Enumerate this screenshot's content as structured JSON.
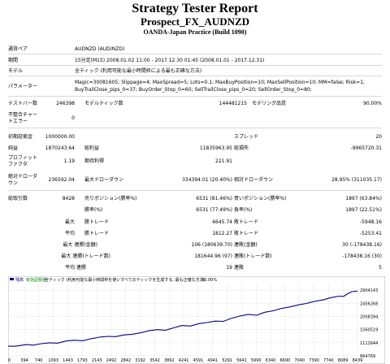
{
  "header": {
    "title": "Strategy Tester Report",
    "subtitle": "Prospect_FX_AUDNZD",
    "build": "OANDA-Japan Practice (Build 1090)"
  },
  "settings": {
    "symbol_label": "通貨ペア",
    "symbol_value": "AUDNZD (AUD/NZD)",
    "period_label": "期間",
    "period_value": "15分足(M15) 2008.01.02 11:00 - 2017.12.30 01:45 (2008.01.01 - 2017.12.31)",
    "model_label": "モデル",
    "model_value": "全ティック (利用可能な最小時間枠による最も正確な方法)",
    "params_label": "パラメーター",
    "params_line1": "Magic=30081605; Slippage=4; MaxSpread=5; Lots=0.1; MaxBuyPosition=10; MaxSellPosition=10; MM=false; Risk=1;",
    "params_line2": "BuyTrailClose_pips_0=37; BuyOrder_Stop_0=60; SellTrailClose_pips_0=20; SellOrder_Stop_0=80;"
  },
  "test_info": {
    "bars_label": "テストバー数",
    "bars_value": "246398",
    "ticks_label": "モデルティック数",
    "ticks_value": "144481215",
    "quality_label": "モデリング品質",
    "quality_value": "90.00%",
    "mismatch_label_1": "不整合チャー",
    "mismatch_label_2": "トエラー",
    "mismatch_value": "0"
  },
  "results": {
    "deposit_label": "初期証拠金",
    "deposit_value": "1000000.00",
    "spread_label": "スプレッド",
    "spread_value": "20",
    "net_label": "純益",
    "net_value": "1870243.64",
    "gross_profit_label": "総利益",
    "gross_profit_value": "11835963.95",
    "gross_loss_label": "総損失",
    "gross_loss_value": "-9965720.31",
    "pf_label_1": "プロフィット",
    "pf_label_2": "ファクタ",
    "pf_value": "1.19",
    "expected_label": "期待利得",
    "expected_value": "221.91",
    "abs_dd_label_1": "絶対ドローダ",
    "abs_dd_label_2": "ウン",
    "abs_dd_value": "236592.04",
    "max_dd_label": "最大ドローダウン",
    "max_dd_value": "334394.01 (20.40%)",
    "rel_dd_label": "相対ドローダウン",
    "rel_dd_value": "28.95% (311035.17)",
    "trades_label": "総取引数",
    "trades_value": "8428",
    "short_label": "売りポジション(勝率%)",
    "short_value": "6531 (81.46%)",
    "long_label": "買いポジション(勝率%)",
    "long_value": "1897 (63.84%)",
    "win_label": "勝率(%)",
    "win_value": "6531 (77.49%)",
    "loss_label": "負率(%)",
    "loss_value": "1897 (22.51%)",
    "largest_label": "最大",
    "avg_label": "平均",
    "max_label": "最大",
    "win_trade_label": "勝トレード",
    "loss_trade_label": "敗トレード",
    "largest_win_value": "6645.74",
    "largest_loss_value": "-5948.16",
    "avg_win_value": "1812.27",
    "avg_loss_value": "-5253.41",
    "consec_win_money_label": "最大 連勝(金額)",
    "consec_win_money_value": "106 (180639.70)",
    "consec_loss_money_label": "連敗(金額)",
    "consec_loss_money_value": "30 (-178438.16)",
    "consec_profit_label": "最大 連勝(トレード数)",
    "consec_profit_value": "181644.96 (97)",
    "consec_lossamt_label": "連敗(トレード数)",
    "consec_lossamt_value": "-178438.16 (30)",
    "avg_consec_win_label": "平均 連勝",
    "avg_consec_win_value": "19",
    "avg_consec_loss_label": "連敗",
    "avg_consec_loss_value": "5"
  },
  "chart": {
    "legend_balance": "残高",
    "legend_equity": "有効証拠金",
    "legend_desc": "全ティック (利用可能な最小時間枠を使いすべてのティックを生成する, 最も正確な方法)",
    "legend_quality": "90.00%",
    "line_color": "#000080",
    "bg_color": "#ffffff",
    "grid_color": "#c0c0c0"
  },
  "chart_data": {
    "type": "line",
    "title": "",
    "xlabel": "",
    "ylabel": "",
    "x_ticks": [
      "0",
      "394",
      "740",
      "1093",
      "1443",
      "1793",
      "2143",
      "2492",
      "2842",
      "3192",
      "3542",
      "3892",
      "4241",
      "4591",
      "4941",
      "5291",
      "5641",
      "5990",
      "6340",
      "6690",
      "7040",
      "7390",
      "7740",
      "8089",
      "8439"
    ],
    "y_ticks": [
      "2904143",
      "2456268",
      "2008394",
      "1560519",
      "1112644",
      "664769"
    ],
    "ylim": [
      664769,
      3128080
    ],
    "xlim": [
      0,
      8439
    ],
    "series": [
      {
        "x": [
          0,
          150,
          300,
          450,
          600,
          800,
          1000,
          1200,
          1400,
          1600,
          1800,
          2000,
          2200,
          2400,
          2600,
          2800,
          3000,
          3200,
          3400,
          3600,
          3800,
          4000,
          4200,
          4400,
          4600,
          4800,
          5000,
          5200,
          5400,
          5600,
          5800,
          6000,
          6200,
          6400,
          6600,
          6800,
          7000,
          7200,
          7400,
          7600,
          7800,
          8000,
          8100,
          8200,
          8300,
          8439
        ],
        "y": [
          1000000,
          990000,
          1020000,
          1050000,
          1030000,
          1080000,
          1110000,
          1100000,
          1170000,
          1200000,
          1180000,
          1250000,
          1300000,
          1330000,
          1320000,
          1380000,
          1400000,
          1450000,
          1520000,
          1560000,
          1540000,
          1620000,
          1700000,
          1680000,
          1760000,
          1800000,
          1850000,
          1840000,
          1950000,
          2020000,
          2080000,
          2050000,
          2150000,
          2200000,
          2280000,
          2330000,
          2400000,
          2450000,
          2520000,
          2570000,
          2650000,
          2700000,
          2690000,
          2780000,
          2850000,
          2870244
        ]
      }
    ]
  }
}
